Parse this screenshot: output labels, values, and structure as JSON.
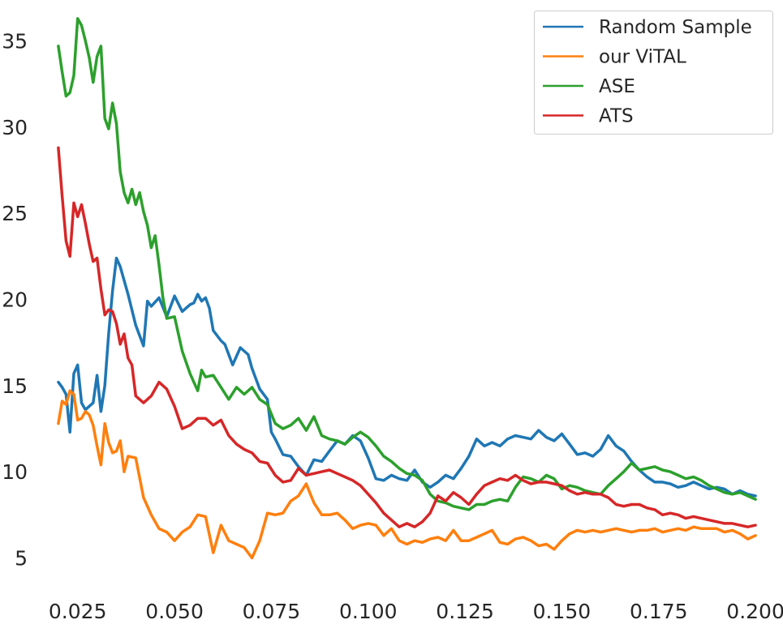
{
  "chart_data": {
    "type": "line",
    "title": "",
    "xlabel": "",
    "ylabel": "",
    "xlim": [
      0.015,
      0.205
    ],
    "ylim": [
      3.0,
      37.0
    ],
    "grid": false,
    "legend_position": "top-right",
    "x_ticks": [
      0.025,
      0.05,
      0.075,
      0.1,
      0.125,
      0.15,
      0.175,
      0.2
    ],
    "x_tick_labels": [
      "0.025",
      "0.050",
      "0.075",
      "0.100",
      "0.125",
      "0.150",
      "0.175",
      "0.200"
    ],
    "y_ticks": [
      5,
      10,
      15,
      20,
      25,
      30,
      35
    ],
    "y_tick_labels": [
      "5",
      "10",
      "15",
      "20",
      "25",
      "30",
      "35"
    ],
    "series": [
      {
        "name": "Random Sample",
        "color": "#1f77b4",
        "x": [
          0.02,
          0.021,
          0.022,
          0.023,
          0.024,
          0.025,
          0.026,
          0.027,
          0.029,
          0.03,
          0.031,
          0.032,
          0.033,
          0.034,
          0.035,
          0.036,
          0.038,
          0.04,
          0.042,
          0.043,
          0.044,
          0.046,
          0.048,
          0.05,
          0.052,
          0.054,
          0.055,
          0.056,
          0.057,
          0.058,
          0.059,
          0.06,
          0.062,
          0.063,
          0.065,
          0.067,
          0.069,
          0.07,
          0.072,
          0.074,
          0.075,
          0.076,
          0.078,
          0.08,
          0.082,
          0.084,
          0.086,
          0.088,
          0.09,
          0.092,
          0.094,
          0.096,
          0.098,
          0.1,
          0.102,
          0.104,
          0.106,
          0.108,
          0.11,
          0.112,
          0.114,
          0.116,
          0.118,
          0.12,
          0.122,
          0.124,
          0.126,
          0.128,
          0.13,
          0.132,
          0.134,
          0.136,
          0.138,
          0.14,
          0.142,
          0.144,
          0.146,
          0.148,
          0.15,
          0.152,
          0.154,
          0.156,
          0.158,
          0.16,
          0.162,
          0.164,
          0.166,
          0.168,
          0.17,
          0.172,
          0.174,
          0.176,
          0.178,
          0.18,
          0.182,
          0.184,
          0.186,
          0.188,
          0.19,
          0.192,
          0.194,
          0.196,
          0.198,
          0.2
        ],
        "y": [
          15.2,
          14.9,
          14.5,
          12.3,
          15.7,
          16.2,
          14.0,
          13.6,
          14.0,
          15.6,
          13.5,
          15.0,
          18.0,
          20.5,
          22.4,
          21.9,
          20.3,
          18.5,
          17.3,
          19.9,
          19.6,
          20.1,
          19.0,
          20.2,
          19.3,
          19.7,
          19.8,
          20.3,
          19.9,
          20.1,
          19.5,
          18.2,
          17.6,
          17.4,
          16.2,
          17.2,
          16.8,
          16.0,
          14.8,
          14.2,
          12.3,
          11.9,
          11.0,
          10.9,
          10.3,
          9.8,
          10.7,
          10.6,
          11.2,
          11.8,
          11.6,
          12.1,
          11.8,
          10.8,
          9.6,
          9.5,
          9.8,
          9.6,
          9.5,
          10.1,
          9.4,
          9.1,
          9.4,
          9.8,
          9.6,
          10.2,
          10.9,
          11.9,
          11.5,
          11.7,
          11.5,
          11.9,
          12.1,
          12.0,
          11.9,
          12.4,
          12.0,
          11.8,
          12.2,
          11.6,
          11.0,
          11.1,
          10.9,
          11.3,
          12.1,
          11.5,
          11.2,
          10.6,
          10.1,
          9.7,
          9.4,
          9.4,
          9.3,
          9.1,
          9.2,
          9.4,
          9.2,
          9.0,
          9.1,
          9.0,
          8.7,
          8.9,
          8.7,
          8.6
        ]
      },
      {
        "name": "our ViTAL",
        "color": "#ff7f0e",
        "x": [
          0.02,
          0.021,
          0.022,
          0.023,
          0.024,
          0.025,
          0.026,
          0.027,
          0.028,
          0.029,
          0.03,
          0.031,
          0.032,
          0.033,
          0.034,
          0.035,
          0.036,
          0.037,
          0.038,
          0.04,
          0.042,
          0.044,
          0.046,
          0.048,
          0.05,
          0.052,
          0.054,
          0.056,
          0.058,
          0.06,
          0.062,
          0.064,
          0.066,
          0.068,
          0.07,
          0.072,
          0.074,
          0.076,
          0.078,
          0.08,
          0.082,
          0.084,
          0.086,
          0.088,
          0.09,
          0.092,
          0.094,
          0.096,
          0.098,
          0.1,
          0.102,
          0.104,
          0.106,
          0.108,
          0.11,
          0.112,
          0.114,
          0.116,
          0.118,
          0.12,
          0.122,
          0.124,
          0.126,
          0.128,
          0.13,
          0.132,
          0.134,
          0.136,
          0.138,
          0.14,
          0.142,
          0.144,
          0.146,
          0.148,
          0.15,
          0.152,
          0.154,
          0.156,
          0.158,
          0.16,
          0.162,
          0.164,
          0.166,
          0.168,
          0.17,
          0.172,
          0.174,
          0.176,
          0.178,
          0.18,
          0.182,
          0.184,
          0.186,
          0.188,
          0.19,
          0.192,
          0.194,
          0.196,
          0.198,
          0.2
        ],
        "y": [
          12.8,
          14.1,
          13.9,
          14.7,
          14.5,
          13.0,
          13.1,
          13.5,
          13.3,
          12.7,
          11.5,
          10.4,
          12.8,
          11.7,
          11.1,
          11.2,
          11.8,
          10.0,
          10.9,
          10.8,
          8.5,
          7.5,
          6.7,
          6.5,
          6.0,
          6.5,
          6.8,
          7.5,
          7.4,
          5.3,
          6.9,
          6.0,
          5.8,
          5.6,
          5.0,
          6.0,
          7.6,
          7.5,
          7.6,
          8.3,
          8.6,
          9.3,
          8.2,
          7.5,
          7.5,
          7.6,
          7.2,
          6.7,
          6.9,
          7.0,
          6.9,
          6.3,
          6.7,
          6.0,
          5.8,
          6.0,
          5.9,
          6.1,
          6.2,
          6.0,
          6.6,
          6.0,
          6.0,
          6.2,
          6.4,
          6.6,
          5.9,
          5.8,
          6.1,
          6.2,
          6.0,
          5.7,
          5.8,
          5.5,
          6.0,
          6.4,
          6.6,
          6.5,
          6.6,
          6.5,
          6.6,
          6.7,
          6.6,
          6.5,
          6.6,
          6.6,
          6.7,
          6.5,
          6.6,
          6.7,
          6.6,
          6.8,
          6.7,
          6.7,
          6.7,
          6.5,
          6.6,
          6.4,
          6.1,
          6.3
        ]
      },
      {
        "name": "ASE",
        "color": "#2ca02c",
        "x": [
          0.02,
          0.021,
          0.022,
          0.023,
          0.024,
          0.025,
          0.026,
          0.027,
          0.028,
          0.029,
          0.03,
          0.031,
          0.032,
          0.033,
          0.034,
          0.035,
          0.036,
          0.037,
          0.038,
          0.039,
          0.04,
          0.041,
          0.042,
          0.043,
          0.044,
          0.045,
          0.046,
          0.047,
          0.048,
          0.05,
          0.052,
          0.054,
          0.055,
          0.056,
          0.057,
          0.058,
          0.06,
          0.062,
          0.064,
          0.066,
          0.068,
          0.07,
          0.072,
          0.074,
          0.076,
          0.078,
          0.08,
          0.082,
          0.084,
          0.086,
          0.088,
          0.09,
          0.092,
          0.094,
          0.096,
          0.098,
          0.1,
          0.102,
          0.104,
          0.106,
          0.108,
          0.11,
          0.112,
          0.114,
          0.116,
          0.118,
          0.12,
          0.122,
          0.124,
          0.126,
          0.128,
          0.13,
          0.132,
          0.134,
          0.136,
          0.138,
          0.14,
          0.142,
          0.144,
          0.146,
          0.148,
          0.15,
          0.152,
          0.154,
          0.156,
          0.158,
          0.16,
          0.162,
          0.164,
          0.166,
          0.168,
          0.17,
          0.172,
          0.174,
          0.176,
          0.178,
          0.18,
          0.182,
          0.184,
          0.186,
          0.188,
          0.19,
          0.192,
          0.194,
          0.196,
          0.198,
          0.2
        ],
        "y": [
          34.7,
          33.2,
          31.8,
          32.0,
          33.0,
          36.3,
          35.9,
          35.0,
          34.0,
          32.6,
          34.1,
          34.7,
          30.5,
          29.9,
          31.4,
          30.2,
          27.4,
          26.2,
          25.6,
          26.4,
          25.5,
          26.2,
          25.1,
          24.3,
          23.0,
          23.7,
          22.0,
          20.1,
          18.9,
          19.0,
          17.0,
          15.7,
          15.2,
          14.7,
          15.9,
          15.5,
          15.6,
          14.9,
          14.2,
          14.9,
          14.5,
          14.9,
          14.2,
          13.9,
          12.8,
          12.5,
          12.7,
          13.1,
          12.4,
          13.2,
          12.1,
          11.9,
          11.8,
          11.6,
          12.0,
          12.3,
          12.0,
          11.5,
          10.9,
          10.6,
          10.2,
          9.9,
          9.8,
          9.5,
          8.7,
          8.3,
          8.2,
          8.0,
          7.9,
          7.8,
          8.1,
          8.1,
          8.3,
          8.4,
          8.3,
          9.1,
          9.7,
          9.6,
          9.4,
          9.8,
          9.6,
          9.0,
          9.2,
          9.1,
          8.9,
          8.8,
          8.7,
          9.2,
          9.6,
          10.0,
          10.5,
          10.1,
          10.2,
          10.3,
          10.1,
          10.0,
          9.8,
          9.6,
          9.7,
          9.5,
          9.2,
          9.0,
          8.8,
          8.7,
          8.8,
          8.6,
          8.4
        ]
      },
      {
        "name": "ATS",
        "color": "#d62728",
        "x": [
          0.02,
          0.021,
          0.022,
          0.023,
          0.024,
          0.025,
          0.026,
          0.027,
          0.028,
          0.029,
          0.03,
          0.031,
          0.032,
          0.033,
          0.034,
          0.035,
          0.036,
          0.037,
          0.038,
          0.039,
          0.04,
          0.042,
          0.044,
          0.046,
          0.048,
          0.05,
          0.052,
          0.054,
          0.056,
          0.058,
          0.06,
          0.062,
          0.064,
          0.066,
          0.068,
          0.07,
          0.072,
          0.074,
          0.076,
          0.078,
          0.08,
          0.082,
          0.084,
          0.086,
          0.088,
          0.09,
          0.092,
          0.094,
          0.096,
          0.098,
          0.1,
          0.102,
          0.104,
          0.106,
          0.108,
          0.11,
          0.112,
          0.114,
          0.116,
          0.118,
          0.12,
          0.122,
          0.124,
          0.126,
          0.128,
          0.13,
          0.132,
          0.134,
          0.136,
          0.138,
          0.14,
          0.142,
          0.144,
          0.146,
          0.148,
          0.15,
          0.152,
          0.154,
          0.156,
          0.158,
          0.16,
          0.162,
          0.164,
          0.166,
          0.168,
          0.17,
          0.172,
          0.174,
          0.176,
          0.178,
          0.18,
          0.182,
          0.184,
          0.186,
          0.188,
          0.19,
          0.192,
          0.194,
          0.196,
          0.198,
          0.2
        ],
        "y": [
          28.8,
          26.0,
          23.4,
          22.5,
          25.6,
          24.8,
          25.5,
          24.4,
          23.2,
          22.2,
          22.4,
          20.6,
          19.1,
          19.4,
          19.3,
          18.6,
          17.4,
          18.0,
          16.6,
          16.2,
          14.4,
          14.0,
          14.4,
          15.2,
          14.8,
          13.8,
          12.5,
          12.7,
          13.1,
          13.1,
          12.7,
          13.0,
          12.1,
          11.6,
          11.3,
          11.1,
          10.6,
          10.5,
          9.8,
          9.4,
          9.5,
          10.2,
          9.8,
          9.9,
          10.0,
          10.1,
          9.9,
          9.7,
          9.5,
          9.2,
          8.7,
          8.2,
          7.6,
          7.2,
          6.8,
          7.0,
          6.8,
          7.1,
          7.6,
          8.6,
          8.3,
          8.8,
          8.5,
          8.1,
          8.7,
          9.2,
          9.4,
          9.6,
          9.5,
          9.8,
          9.5,
          9.3,
          9.4,
          9.4,
          9.3,
          9.2,
          8.9,
          8.7,
          8.8,
          8.7,
          8.7,
          8.5,
          8.1,
          8.0,
          8.1,
          8.1,
          7.9,
          7.8,
          7.5,
          7.6,
          7.5,
          7.3,
          7.4,
          7.3,
          7.2,
          7.1,
          7.0,
          7.0,
          6.9,
          6.8,
          6.9
        ]
      }
    ]
  }
}
